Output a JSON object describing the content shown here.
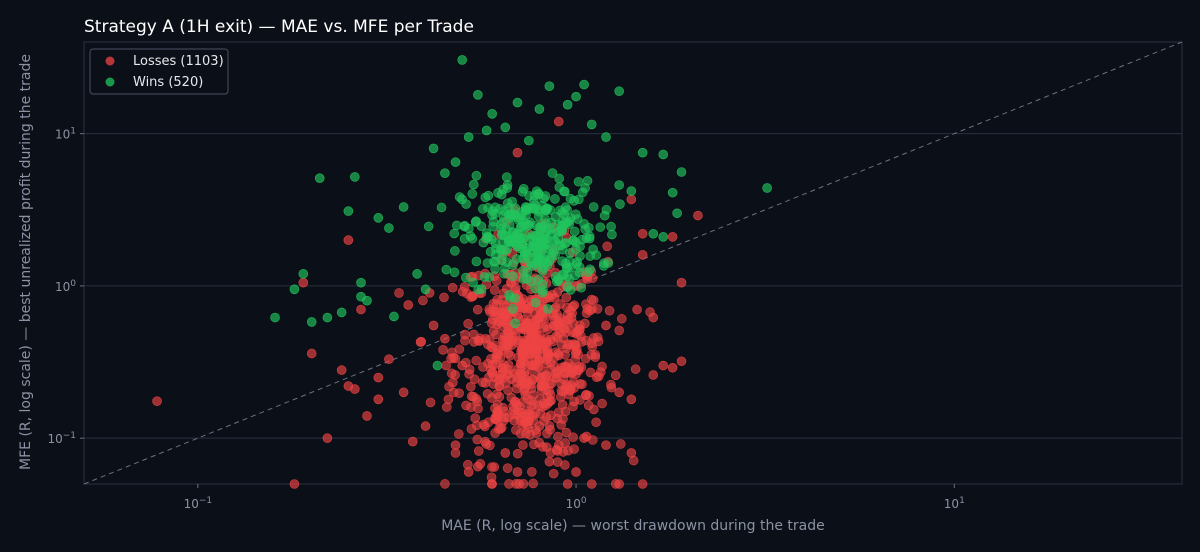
{
  "chart_data": {
    "type": "scatter",
    "title": "Strategy A (1H exit) — MAE vs. MFE per Trade",
    "xlabel": "MAE (R, log scale) — worst drawdown during the trade",
    "ylabel": "MFE (R, log scale) — best unrealized profit during the trade",
    "xscale": "log",
    "yscale": "log",
    "xlim": [
      0.05,
      40
    ],
    "ylim": [
      0.05,
      40
    ],
    "xticks": [
      {
        "value": 0.1,
        "base": "10",
        "exp": "−1"
      },
      {
        "value": 1,
        "base": "10",
        "exp": "0"
      },
      {
        "value": 10,
        "base": "10",
        "exp": "1"
      }
    ],
    "yticks": [
      {
        "value": 0.1,
        "base": "10",
        "exp": "−1"
      },
      {
        "value": 1,
        "base": "10",
        "exp": "0"
      },
      {
        "value": 10,
        "base": "10",
        "exp": "1"
      }
    ],
    "grid": "horizontal",
    "legend_position": "top-left",
    "reference_line": "y = x (dashed)",
    "colors": {
      "background": "#0b0f17",
      "losses": "#ef4444",
      "wins": "#22c55e",
      "grid": "#283041",
      "reference": "#6b7280"
    },
    "series": [
      {
        "name": "Losses (1103)",
        "count": 1103,
        "points": [
          [
            0.078,
            0.175
          ],
          [
            0.18,
            0.05
          ],
          [
            0.2,
            0.36
          ],
          [
            0.19,
            1.05
          ],
          [
            0.22,
            0.1
          ],
          [
            0.24,
            0.28
          ],
          [
            0.25,
            0.22
          ],
          [
            0.26,
            0.21
          ],
          [
            0.27,
            0.7
          ],
          [
            0.28,
            0.14
          ],
          [
            0.3,
            0.25
          ],
          [
            0.32,
            0.33
          ],
          [
            0.35,
            0.2
          ],
          [
            0.37,
            0.095
          ],
          [
            0.4,
            0.12
          ],
          [
            0.42,
            0.55
          ],
          [
            0.45,
            0.45
          ],
          [
            0.48,
            0.09
          ],
          [
            0.5,
            0.3
          ],
          [
            0.52,
            0.06
          ],
          [
            0.55,
            0.065
          ],
          [
            0.6,
            0.05
          ],
          [
            0.62,
            0.15
          ],
          [
            0.65,
            0.08
          ],
          [
            0.7,
            0.06
          ],
          [
            0.75,
            0.13
          ],
          [
            0.8,
            0.12
          ],
          [
            0.85,
            0.07
          ],
          [
            0.9,
            0.09
          ],
          [
            0.95,
            0.05
          ],
          [
            1.0,
            0.06
          ],
          [
            1.05,
            0.1
          ],
          [
            1.1,
            0.05
          ],
          [
            1.2,
            0.09
          ],
          [
            1.3,
            0.05
          ],
          [
            1.4,
            0.08
          ],
          [
            1.5,
            0.05
          ],
          [
            1.3,
            0.2
          ],
          [
            1.4,
            0.18
          ],
          [
            1.6,
            0.26
          ],
          [
            1.7,
            0.3
          ],
          [
            1.8,
            0.29
          ],
          [
            1.9,
            0.32
          ],
          [
            1.6,
            0.62
          ],
          [
            1.9,
            1.05
          ],
          [
            2.1,
            2.9
          ],
          [
            1.8,
            2.1
          ],
          [
            1.5,
            2.2
          ],
          [
            1.4,
            3.7
          ],
          [
            1.5,
            1.6
          ],
          [
            0.9,
            12.0
          ],
          [
            0.7,
            7.5
          ],
          [
            0.25,
            2.0
          ],
          [
            0.3,
            0.18
          ],
          [
            0.36,
            0.75
          ],
          [
            0.41,
            0.9
          ],
          [
            1.45,
            0.7
          ],
          [
            1.2,
            0.55
          ],
          [
            1.1,
            0.42
          ],
          [
            0.95,
            0.6
          ],
          [
            0.88,
            0.25
          ],
          [
            0.78,
            0.45
          ],
          [
            0.72,
            0.38
          ],
          [
            0.66,
            0.5
          ]
        ]
      },
      {
        "name": "Wins (520)",
        "count": 520,
        "points": [
          [
            0.5,
            30.5
          ],
          [
            0.16,
            0.62
          ],
          [
            0.18,
            0.95
          ],
          [
            0.2,
            0.58
          ],
          [
            0.21,
            5.1
          ],
          [
            0.25,
            3.1
          ],
          [
            0.26,
            5.2
          ],
          [
            0.27,
            1.05
          ],
          [
            0.28,
            0.8
          ],
          [
            0.3,
            2.8
          ],
          [
            0.32,
            2.4
          ],
          [
            0.35,
            3.3
          ],
          [
            0.38,
            1.2
          ],
          [
            0.4,
            0.95
          ],
          [
            0.42,
            8.0
          ],
          [
            0.45,
            5.5
          ],
          [
            0.48,
            6.5
          ],
          [
            0.52,
            9.5
          ],
          [
            0.55,
            18.0
          ],
          [
            0.58,
            10.5
          ],
          [
            0.6,
            13.5
          ],
          [
            0.65,
            11.0
          ],
          [
            0.7,
            16.0
          ],
          [
            0.75,
            9.0
          ],
          [
            0.8,
            14.5
          ],
          [
            0.85,
            20.5
          ],
          [
            0.95,
            15.5
          ],
          [
            1.0,
            17.5
          ],
          [
            1.05,
            21.0
          ],
          [
            1.1,
            11.5
          ],
          [
            1.2,
            9.5
          ],
          [
            1.3,
            19.0
          ],
          [
            1.5,
            7.5
          ],
          [
            1.7,
            7.3
          ],
          [
            1.8,
            4.1
          ],
          [
            1.9,
            5.6
          ],
          [
            1.85,
            3.0
          ],
          [
            1.6,
            2.2
          ],
          [
            1.7,
            2.1
          ],
          [
            3.2,
            4.4
          ],
          [
            1.4,
            4.2
          ],
          [
            1.3,
            4.6
          ],
          [
            0.22,
            0.62
          ],
          [
            0.19,
            1.2
          ],
          [
            0.24,
            0.67
          ],
          [
            0.27,
            0.85
          ],
          [
            0.33,
            0.63
          ],
          [
            0.43,
            0.3
          ]
        ]
      }
    ]
  },
  "legend": [
    {
      "label": "Losses (1103)",
      "color": "#ef4444"
    },
    {
      "label": "Wins (520)",
      "color": "#22c55e"
    }
  ]
}
